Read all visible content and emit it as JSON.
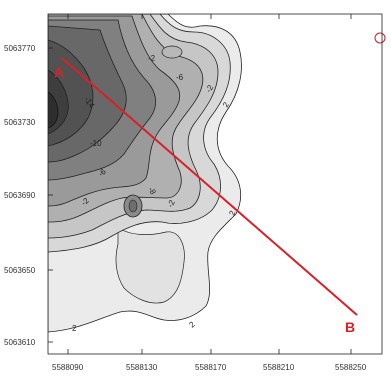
{
  "map": {
    "y_ticks": [
      "5063770",
      "5063730",
      "5063690",
      "5063650",
      "5063610"
    ],
    "x_ticks": [
      "5588090",
      "5588130",
      "5588170",
      "5588210",
      "5588250"
    ],
    "contour_labels": [
      "-2",
      "-6",
      "-14",
      "-10",
      "-6",
      "-2",
      "2",
      "-8",
      "-2",
      "-2",
      "2",
      "2",
      "2"
    ],
    "profile": {
      "start_label": "A",
      "end_label": "B",
      "color": "#d8202a"
    },
    "colors": {
      "fill_light": "#e9e9e9",
      "fill_dark": "#3a3a3a",
      "contour_line": "#1c1c1c"
    }
  }
}
